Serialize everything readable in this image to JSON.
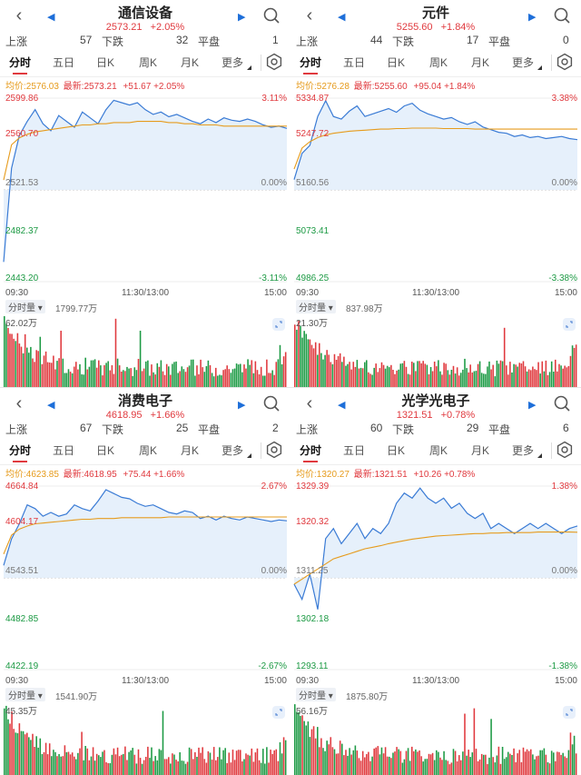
{
  "panels": [
    {
      "title": "通信设备",
      "price": "2573.21",
      "pct": "+2.05%",
      "up_label": "上涨",
      "up": "57",
      "down_label": "下跌",
      "down": "32",
      "flat_label": "平盘",
      "flat": "1",
      "tabs": [
        "分时",
        "五日",
        "日K",
        "周K",
        "月K",
        "更多"
      ],
      "avg_text": "均价:2576.03",
      "last_text": "最新:2573.21",
      "chg_text": "+51.67  +2.05%",
      "left_labels": [
        "2599.86",
        "2560.70",
        "2521.53",
        "2482.37",
        "2443.20"
      ],
      "right_labels": [
        "3.11%",
        "0.00%",
        "-3.11%"
      ],
      "times": [
        "09:30",
        "11:30/13:00",
        "15:00"
      ],
      "vol_tag": "分时量",
      "vol_amount": "1799.77万",
      "vol_max": "62.02万"
    },
    {
      "title": "元件",
      "price": "5255.60",
      "pct": "+1.84%",
      "up_label": "上涨",
      "up": "44",
      "down_label": "下跌",
      "down": "17",
      "flat_label": "平盘",
      "flat": "0",
      "tabs": [
        "分时",
        "五日",
        "日K",
        "周K",
        "月K",
        "更多"
      ],
      "avg_text": "均价:5276.28",
      "last_text": "最新:5255.60",
      "chg_text": "+95.04  +1.84%",
      "left_labels": [
        "5334.87",
        "5247.72",
        "5160.56",
        "5073.41",
        "4986.25"
      ],
      "right_labels": [
        "3.38%",
        "0.00%",
        "-3.38%"
      ],
      "times": [
        "09:30",
        "11:30/13:00",
        "15:00"
      ],
      "vol_tag": "分时量",
      "vol_amount": "837.98万",
      "vol_max": "21.30万"
    },
    {
      "title": "消费电子",
      "price": "4618.95",
      "pct": "+1.66%",
      "up_label": "上涨",
      "up": "67",
      "down_label": "下跌",
      "down": "25",
      "flat_label": "平盘",
      "flat": "2",
      "tabs": [
        "分时",
        "五日",
        "日K",
        "周K",
        "月K",
        "更多"
      ],
      "avg_text": "均价:4623.85",
      "last_text": "最新:4618.95",
      "chg_text": "+75.44  +1.66%",
      "left_labels": [
        "4664.84",
        "4604.17",
        "4543.51",
        "4482.85",
        "4422.19"
      ],
      "right_labels": [
        "2.67%",
        "0.00%",
        "-2.67%"
      ],
      "times": [
        "09:30",
        "11:30/13:00",
        "15:00"
      ],
      "vol_tag": "分时量",
      "vol_amount": "1541.90万",
      "vol_max": "45.35万"
    },
    {
      "title": "光学光电子",
      "price": "1321.51",
      "pct": "+0.78%",
      "up_label": "上涨",
      "up": "60",
      "down_label": "下跌",
      "down": "29",
      "flat_label": "平盘",
      "flat": "6",
      "tabs": [
        "分时",
        "五日",
        "日K",
        "周K",
        "月K",
        "更多"
      ],
      "avg_text": "均价:1320.27",
      "last_text": "最新:1321.51",
      "chg_text": "+10.26  +0.78%",
      "left_labels": [
        "1329.39",
        "1320.32",
        "1311.25",
        "1302.18",
        "1293.11"
      ],
      "right_labels": [
        "1.38%",
        "0.00%",
        "-1.38%"
      ],
      "times": [
        "09:30",
        "11:30/13:00",
        "15:00"
      ],
      "vol_tag": "分时量",
      "vol_amount": "1875.80万",
      "vol_max": "56.16万"
    }
  ],
  "colors": {
    "up": "#e0393e",
    "down": "#1c9a44",
    "price_line": "#3a7bd5",
    "avg_line": "#e69b1c",
    "area": "#e3eefb"
  },
  "icons": [
    "back-icon",
    "prev-triangle-icon",
    "next-triangle-icon",
    "search-icon",
    "gear-icon",
    "expand-icon"
  ],
  "chart_data": [
    {
      "type": "line",
      "name": "通信设备",
      "base": 2521.53,
      "ylim": [
        2443.2,
        2599.86
      ],
      "price_path": [
        2460,
        2540,
        2568,
        2580,
        2590,
        2578,
        2572,
        2585,
        2580,
        2575,
        2588,
        2583,
        2578,
        2590,
        2598,
        2596,
        2594,
        2596,
        2590,
        2586,
        2588,
        2584,
        2586,
        2583,
        2580,
        2578,
        2582,
        2579,
        2583,
        2581,
        2580,
        2582,
        2580,
        2577,
        2575,
        2576,
        2574
      ],
      "avg_path": [
        2530,
        2560,
        2566,
        2569,
        2571,
        2572,
        2573,
        2574,
        2575,
        2576,
        2577,
        2577,
        2578,
        2578,
        2579,
        2579,
        2579,
        2580,
        2580,
        2580,
        2580,
        2579,
        2579,
        2578,
        2578,
        2577,
        2577,
        2577,
        2576,
        2576,
        2576,
        2576,
        2576,
        2576,
        2576,
        2576,
        2576
      ]
    },
    {
      "type": "line",
      "name": "元件",
      "base": 5160.56,
      "ylim": [
        4986.25,
        5334.87
      ],
      "price_path": [
        5180,
        5230,
        5245,
        5300,
        5330,
        5300,
        5295,
        5310,
        5320,
        5300,
        5305,
        5310,
        5315,
        5308,
        5320,
        5325,
        5312,
        5305,
        5300,
        5295,
        5298,
        5290,
        5285,
        5290,
        5280,
        5275,
        5270,
        5268,
        5262,
        5265,
        5260,
        5262,
        5258,
        5260,
        5262,
        5258,
        5256
      ],
      "avg_path": [
        5200,
        5240,
        5252,
        5260,
        5265,
        5268,
        5270,
        5272,
        5273,
        5274,
        5275,
        5276,
        5276,
        5277,
        5277,
        5278,
        5278,
        5278,
        5278,
        5277,
        5277,
        5277,
        5277,
        5276,
        5276,
        5276,
        5276,
        5276,
        5276,
        5276,
        5276,
        5276,
        5276,
        5276,
        5276,
        5276,
        5276
      ]
    },
    {
      "type": "line",
      "name": "消费电子",
      "base": 4543.51,
      "ylim": [
        4422.19,
        4664.84
      ],
      "price_path": [
        4560,
        4595,
        4615,
        4640,
        4635,
        4625,
        4630,
        4625,
        4628,
        4640,
        4635,
        4632,
        4645,
        4660,
        4655,
        4650,
        4648,
        4642,
        4638,
        4640,
        4635,
        4630,
        4628,
        4632,
        4630,
        4622,
        4625,
        4620,
        4625,
        4622,
        4620,
        4624,
        4622,
        4620,
        4618,
        4620,
        4619
      ],
      "avg_path": [
        4575,
        4600,
        4608,
        4612,
        4615,
        4616,
        4617,
        4618,
        4619,
        4620,
        4621,
        4621,
        4622,
        4622,
        4622,
        4623,
        4623,
        4623,
        4623,
        4623,
        4623,
        4624,
        4624,
        4624,
        4624,
        4624,
        4624,
        4624,
        4624,
        4624,
        4624,
        4624,
        4624,
        4624,
        4624,
        4624,
        4624
      ]
    },
    {
      "type": "line",
      "name": "光学光电子",
      "base": 1311.25,
      "ylim": [
        1293.11,
        1329.39
      ],
      "price_path": [
        1310,
        1307,
        1312,
        1305,
        1319,
        1321,
        1318,
        1320,
        1322,
        1319,
        1321,
        1320,
        1322,
        1326,
        1328,
        1327,
        1329,
        1327,
        1326,
        1327,
        1325,
        1326,
        1324,
        1323,
        1324,
        1321,
        1322,
        1321,
        1320,
        1321,
        1322,
        1321,
        1322,
        1321,
        1320,
        1321,
        1321.5
      ],
      "avg_path": [
        1310,
        1311,
        1312,
        1313,
        1314,
        1315,
        1315.5,
        1316,
        1316.5,
        1317,
        1317.3,
        1317.6,
        1318,
        1318.3,
        1318.6,
        1318.9,
        1319.1,
        1319.3,
        1319.5,
        1319.6,
        1319.7,
        1319.8,
        1319.9,
        1320,
        1320,
        1320.1,
        1320.1,
        1320.2,
        1320.2,
        1320.2,
        1320.2,
        1320.3,
        1320.3,
        1320.3,
        1320.3,
        1320.3,
        1320.27
      ]
    }
  ]
}
